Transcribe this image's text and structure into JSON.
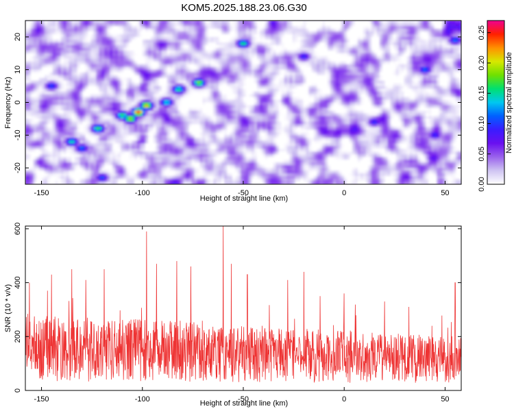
{
  "title": "KOM5.2025.188.23.06.G30",
  "chart_data": [
    {
      "type": "heatmap",
      "xlabel": "Height of straight line (km)",
      "ylabel": "Frequency (Hz)",
      "xlim": [
        -158,
        58
      ],
      "ylim": [
        -25,
        25
      ],
      "x_ticks": [
        -150,
        -100,
        -50,
        0,
        50
      ],
      "y_ticks": [
        -20,
        -10,
        0,
        10,
        20
      ],
      "colorbar": {
        "label": "Normalized spectral amplitude",
        "range": [
          0,
          0.27
        ],
        "ticks": [
          "0.00",
          "0.05",
          "0.10",
          "0.15",
          "0.20",
          "0.25"
        ],
        "colors": [
          "#ffffff",
          "#cfc4f2",
          "#9a63ec",
          "#6a10f0",
          "#3a1cff",
          "#0060ff",
          "#00c8f0",
          "#00e070",
          "#6fe000",
          "#d8e800",
          "#ff9000",
          "#ff2000",
          "#f00090"
        ]
      },
      "hotspots": [
        {
          "x": -102,
          "y": -3,
          "v": 0.25
        },
        {
          "x": -98,
          "y": -1,
          "v": 0.22
        },
        {
          "x": -106,
          "y": -5,
          "v": 0.2
        },
        {
          "x": -110,
          "y": -4,
          "v": 0.17
        },
        {
          "x": -72,
          "y": 6,
          "v": 0.19
        },
        {
          "x": -82,
          "y": 4,
          "v": 0.16
        },
        {
          "x": -88,
          "y": 0,
          "v": 0.15
        },
        {
          "x": -122,
          "y": -8,
          "v": 0.17
        },
        {
          "x": -135,
          "y": -12,
          "v": 0.15
        },
        {
          "x": -50,
          "y": 18,
          "v": 0.16
        },
        {
          "x": -130,
          "y": -14,
          "v": 0.12
        },
        {
          "x": -145,
          "y": 5,
          "v": 0.11
        },
        {
          "x": 40,
          "y": 10,
          "v": 0.12
        },
        {
          "x": -20,
          "y": 14,
          "v": 0.1
        },
        {
          "x": 15,
          "y": -6,
          "v": 0.1
        },
        {
          "x": -120,
          "y": -23,
          "v": 0.11
        },
        {
          "x": 55,
          "y": 19,
          "v": 0.12
        },
        {
          "x": 45,
          "y": -10,
          "v": 0.1
        }
      ]
    },
    {
      "type": "line",
      "xlabel": "Height of straight line (km)",
      "ylabel": "SNR (10 * v/v)",
      "xlim": [
        -158,
        58
      ],
      "ylim": [
        0,
        610
      ],
      "x_ticks": [
        -150,
        -100,
        -50,
        0,
        50
      ],
      "y_ticks": [
        0,
        200,
        400,
        600
      ],
      "color": "#ee3333",
      "peaks": [
        {
          "x": -156,
          "y": 400
        },
        {
          "x": -147,
          "y": 370
        },
        {
          "x": -145,
          "y": 430
        },
        {
          "x": -135,
          "y": 450
        },
        {
          "x": -128,
          "y": 410
        },
        {
          "x": -119,
          "y": 450
        },
        {
          "x": -98,
          "y": 590
        },
        {
          "x": -93,
          "y": 470
        },
        {
          "x": -83,
          "y": 480
        },
        {
          "x": -76,
          "y": 460
        },
        {
          "x": -60,
          "y": 610
        },
        {
          "x": -56,
          "y": 470
        },
        {
          "x": -48,
          "y": 430
        },
        {
          "x": -28,
          "y": 410
        },
        {
          "x": -20,
          "y": 440
        },
        {
          "x": -12,
          "y": 350
        },
        {
          "x": 0,
          "y": 360
        },
        {
          "x": 20,
          "y": 330
        },
        {
          "x": 32,
          "y": 310
        },
        {
          "x": 55,
          "y": 400
        }
      ],
      "baseline_mean": 140,
      "baseline_spread": 110
    }
  ]
}
